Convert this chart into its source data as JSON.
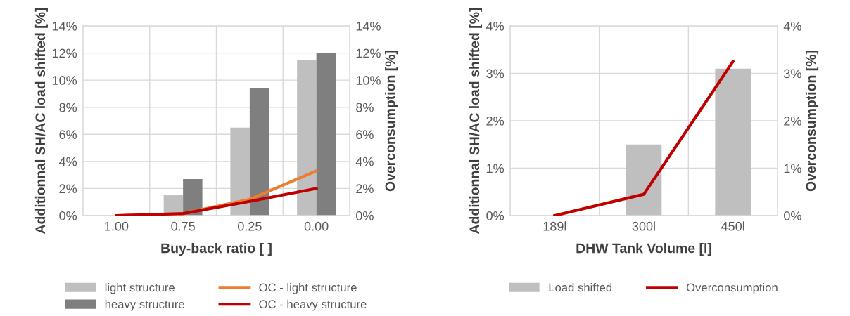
{
  "chart_data": [
    {
      "type": "bar",
      "xlabel": "Buy-back ratio [ ]",
      "ylabel": "Additionnal SH/AC load shifted [%]",
      "y2label": "Overconsumption [%]",
      "categories": [
        "1.00",
        "0.75",
        "0.25",
        "0.00"
      ],
      "series": [
        {
          "name": "light structure",
          "color": "#bfbfbf",
          "values": [
            0,
            1.5,
            6.5,
            11.5
          ]
        },
        {
          "name": "heavy structure",
          "color": "#7f7f7f",
          "values": [
            0,
            2.7,
            9.4,
            12.0
          ]
        },
        {
          "name": "OC - light structure",
          "type": "line",
          "axis": "y2",
          "color": "#ed7d31",
          "values": [
            0,
            0.15,
            1.2,
            3.3
          ]
        },
        {
          "name": "OC - heavy structure",
          "type": "line",
          "axis": "y2",
          "color": "#c00000",
          "values": [
            0,
            0.15,
            1.05,
            2.0
          ]
        }
      ],
      "ylim": [
        0,
        14
      ],
      "yticks": [
        {
          "value": 0,
          "label": "0%"
        },
        {
          "value": 2,
          "label": "2%"
        },
        {
          "value": 4,
          "label": "4%"
        },
        {
          "value": 6,
          "label": "6%"
        },
        {
          "value": 8,
          "label": "8%"
        },
        {
          "value": 10,
          "label": "10%"
        },
        {
          "value": 12,
          "label": "12%"
        },
        {
          "value": 14,
          "label": "14%"
        }
      ],
      "y2lim": [
        0,
        14
      ],
      "y2ticks": [
        {
          "value": 0,
          "label": "0%"
        },
        {
          "value": 2,
          "label": "2%"
        },
        {
          "value": 4,
          "label": "4%"
        },
        {
          "value": 6,
          "label": "6%"
        },
        {
          "value": 8,
          "label": "8%"
        },
        {
          "value": 10,
          "label": "10%"
        },
        {
          "value": 12,
          "label": "12%"
        },
        {
          "value": 14,
          "label": "14%"
        }
      ],
      "grid": true,
      "legend": "bottom",
      "marker": "none",
      "line_style": "solid"
    },
    {
      "type": "bar",
      "xlabel": "DHW Tank Volume [l]",
      "ylabel": "Additionnal SH/AC load shifted [%]",
      "y2label": "Overconsumption [%]",
      "categories": [
        "189l",
        "300l",
        "450l"
      ],
      "series": [
        {
          "name": "Load shifted",
          "color": "#bfbfbf",
          "values": [
            0,
            1.5,
            3.1
          ]
        },
        {
          "name": "Overconsumption",
          "type": "line",
          "axis": "y2",
          "color": "#c00000",
          "values": [
            0,
            0.45,
            3.25
          ]
        }
      ],
      "ylim": [
        0,
        4
      ],
      "yticks": [
        {
          "value": 0,
          "label": "0%"
        },
        {
          "value": 1,
          "label": "1%"
        },
        {
          "value": 2,
          "label": "2%"
        },
        {
          "value": 3,
          "label": "3%"
        },
        {
          "value": 4,
          "label": "4%"
        }
      ],
      "y2lim": [
        0,
        4
      ],
      "y2ticks": [
        {
          "value": 0,
          "label": "0%"
        },
        {
          "value": 1,
          "label": "1%"
        },
        {
          "value": 2,
          "label": "2%"
        },
        {
          "value": 3,
          "label": "3%"
        },
        {
          "value": 4,
          "label": "4%"
        }
      ],
      "grid": true,
      "legend": "bottom",
      "marker": "none",
      "line_style": "solid"
    }
  ]
}
